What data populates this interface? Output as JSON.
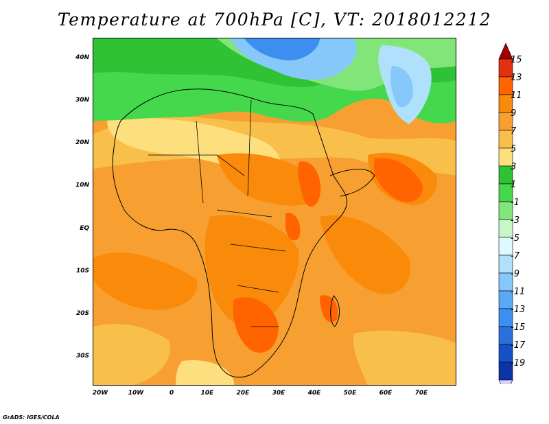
{
  "title": "Temperature at 700hPa [C], VT: 2018012212",
  "credit": "GrADS: IGES/COLA",
  "axes": {
    "lat_labels": [
      "40N",
      "30N",
      "20N",
      "10N",
      "EQ",
      "10S",
      "20S",
      "30S"
    ],
    "lon_labels": [
      "20W",
      "10W",
      "0",
      "10E",
      "20E",
      "30E",
      "40E",
      "50E",
      "60E",
      "70E"
    ]
  },
  "colorbar": {
    "labels": [
      "15",
      "13",
      "11",
      "9",
      "7",
      "5",
      "3",
      "1",
      "-1",
      "-3",
      "-5",
      "-7",
      "-9",
      "-11",
      "-13",
      "-15",
      "-17",
      "-19"
    ],
    "colors": [
      "#a50000",
      "#e23010",
      "#ff6400",
      "#fa8a0a",
      "#f7a031",
      "#f8bf4a",
      "#fde07d",
      "#2fc234",
      "#45d84c",
      "#82e57a",
      "#c7f7c7",
      "#e0f8ff",
      "#b0e1fc",
      "#86c8f9",
      "#5ba9f5",
      "#3c8ff0",
      "#2a70dc",
      "#1650c8",
      "#0c34a8",
      "#091c74"
    ]
  }
}
